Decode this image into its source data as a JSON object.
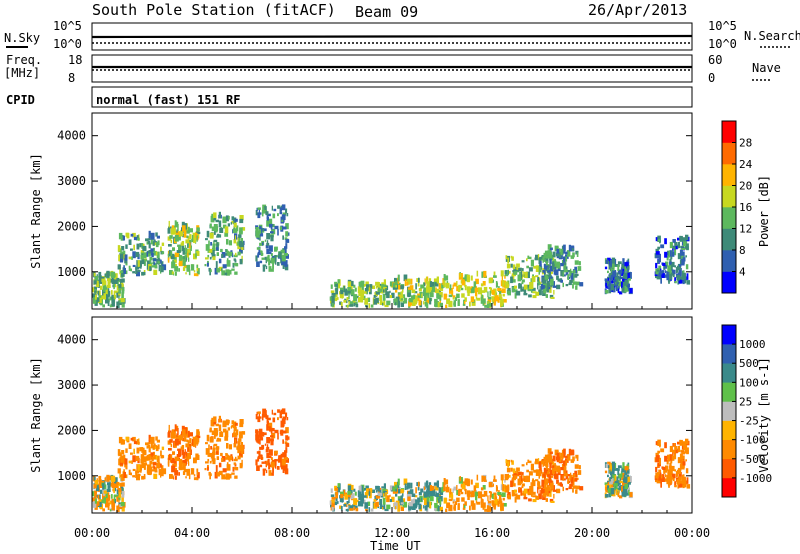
{
  "header": {
    "station": "South Pole Station (fitACF)",
    "beam": "Beam 09",
    "date": "26/Apr/2013"
  },
  "status_panels": {
    "nsky_label": "N.Sky",
    "nsearch_label": "N.Search",
    "freq_label": "Freq.",
    "freq_unit": "[MHz]",
    "nave_label": "Nave",
    "cpid_label": "CPID",
    "cpid_text": "normal (fast) 151 RF",
    "noise_ticks": [
      "10^5",
      "10^0"
    ],
    "freq_ticks": [
      "18",
      "8"
    ],
    "nave_ticks": [
      "60",
      "0"
    ]
  },
  "colors": {
    "power": [
      "#0000ff",
      "#2f5fb0",
      "#3e8a78",
      "#5db85e",
      "#c7d820",
      "#ffb400",
      "#ff6a00",
      "#ff0000"
    ],
    "velocity": [
      "#0000ff",
      "#3060b0",
      "#3a8a8a",
      "#5fc04a",
      "#bdbdbd",
      "#ffb400",
      "#ff8a00",
      "#ff5a00",
      "#ff0000"
    ]
  },
  "chart_data": [
    {
      "type": "heatmap",
      "title": "South Pole Station (fitACF) Beam 09 26/Apr/2013",
      "xlabel": "Time UT",
      "ylabel": "Slant Range [km]",
      "colorbar_label": "Power [dB]",
      "x_ticks": [
        "00:00",
        "04:00",
        "08:00",
        "12:00",
        "16:00",
        "20:00",
        "00:00"
      ],
      "xlim": [
        0,
        24
      ],
      "ylim": [
        180,
        4500
      ],
      "y_ticks": [
        1000,
        2000,
        3000,
        4000
      ],
      "colorbar_ticks": [
        4,
        8,
        12,
        16,
        20,
        24,
        28
      ],
      "colorbar_range": [
        0,
        32
      ],
      "echo_regions": [
        {
          "t0": 0.0,
          "t1": 1.2,
          "r0": 200,
          "r1": 900,
          "level": 14
        },
        {
          "t0": 1.0,
          "t1": 2.8,
          "r0": 900,
          "r1": 1800,
          "level": 12
        },
        {
          "t0": 3.0,
          "t1": 4.2,
          "r0": 900,
          "r1": 2000,
          "level": 16
        },
        {
          "t0": 4.5,
          "t1": 6.0,
          "r0": 900,
          "r1": 2200,
          "level": 12
        },
        {
          "t0": 6.5,
          "t1": 7.8,
          "r0": 1000,
          "r1": 2400,
          "level": 10
        },
        {
          "t0": 9.5,
          "t1": 12.0,
          "r0": 200,
          "r1": 700,
          "level": 14
        },
        {
          "t0": 12.0,
          "t1": 14.0,
          "r0": 200,
          "r1": 800,
          "level": 16
        },
        {
          "t0": 14.0,
          "t1": 16.5,
          "r0": 200,
          "r1": 900,
          "level": 18
        },
        {
          "t0": 16.5,
          "t1": 18.5,
          "r0": 400,
          "r1": 1300,
          "level": 14
        },
        {
          "t0": 17.8,
          "t1": 19.5,
          "r0": 600,
          "r1": 1500,
          "level": 10
        },
        {
          "t0": 20.5,
          "t1": 21.5,
          "r0": 500,
          "r1": 1200,
          "level": 8
        },
        {
          "t0": 22.5,
          "t1": 23.8,
          "r0": 700,
          "r1": 1700,
          "level": 8
        }
      ]
    },
    {
      "type": "heatmap",
      "title": "",
      "xlabel": "Time UT",
      "ylabel": "Slant Range [km]",
      "colorbar_label": "Velocity [m s-1]",
      "x_ticks": [
        "00:00",
        "04:00",
        "08:00",
        "12:00",
        "16:00",
        "20:00",
        "00:00"
      ],
      "xlim": [
        0,
        24
      ],
      "ylim": [
        180,
        4500
      ],
      "y_ticks": [
        1000,
        2000,
        3000,
        4000
      ],
      "colorbar_ticks": [
        "1000",
        "500",
        "100",
        "25",
        "-25",
        "-100",
        "-500",
        "-1000"
      ],
      "echo_regions": [
        {
          "t0": 0.0,
          "t1": 1.2,
          "r0": 200,
          "r1": 900,
          "level": -50
        },
        {
          "t0": 1.0,
          "t1": 2.8,
          "r0": 900,
          "r1": 1800,
          "level": -300
        },
        {
          "t0": 3.0,
          "t1": 4.2,
          "r0": 900,
          "r1": 2000,
          "level": -400
        },
        {
          "t0": 4.5,
          "t1": 6.0,
          "r0": 900,
          "r1": 2200,
          "level": -350
        },
        {
          "t0": 6.5,
          "t1": 7.8,
          "r0": 1000,
          "r1": 2400,
          "level": -700
        },
        {
          "t0": 9.5,
          "t1": 12.0,
          "r0": 200,
          "r1": 700,
          "level": 50
        },
        {
          "t0": 12.0,
          "t1": 14.0,
          "r0": 200,
          "r1": 800,
          "level": 120
        },
        {
          "t0": 14.0,
          "t1": 16.5,
          "r0": 200,
          "r1": 900,
          "level": -200
        },
        {
          "t0": 16.5,
          "t1": 18.5,
          "r0": 400,
          "r1": 1300,
          "level": -300
        },
        {
          "t0": 17.8,
          "t1": 19.5,
          "r0": 600,
          "r1": 1500,
          "level": -500
        },
        {
          "t0": 20.5,
          "t1": 21.5,
          "r0": 500,
          "r1": 1200,
          "level": 80
        },
        {
          "t0": 22.5,
          "t1": 23.8,
          "r0": 700,
          "r1": 1700,
          "level": -400
        }
      ]
    }
  ]
}
